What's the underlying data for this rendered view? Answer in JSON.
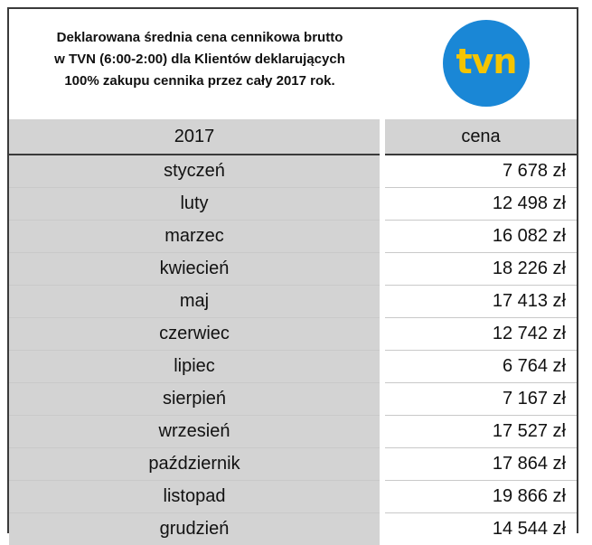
{
  "header": {
    "title_lines": [
      "Deklarowana średnia cena cennikowa brutto",
      "w TVN (6:00-2:00) dla Klientów deklarujących",
      "100% zakupu cennika przez cały 2017 rok."
    ],
    "logo_text": "tvn",
    "logo_colors": {
      "circle": "#1a87d6",
      "text": "#f5c400"
    }
  },
  "table": {
    "columns": [
      "2017",
      "cena"
    ],
    "rows": [
      {
        "month": "styczeń",
        "price": "7 678 zł"
      },
      {
        "month": "luty",
        "price": "12 498 zł"
      },
      {
        "month": "marzec",
        "price": "16 082 zł"
      },
      {
        "month": "kwiecień",
        "price": "18 226 zł"
      },
      {
        "month": "maj",
        "price": "17 413 zł"
      },
      {
        "month": "czerwiec",
        "price": "12 742 zł"
      },
      {
        "month": "lipiec",
        "price": "6 764 zł"
      },
      {
        "month": "sierpień",
        "price": "7 167 zł"
      },
      {
        "month": "wrzesień",
        "price": "17 527 zł"
      },
      {
        "month": "październik",
        "price": "17 864 zł"
      },
      {
        "month": "listopad",
        "price": "19 866 zł"
      },
      {
        "month": "grudzień",
        "price": "14 544 zł"
      }
    ]
  }
}
